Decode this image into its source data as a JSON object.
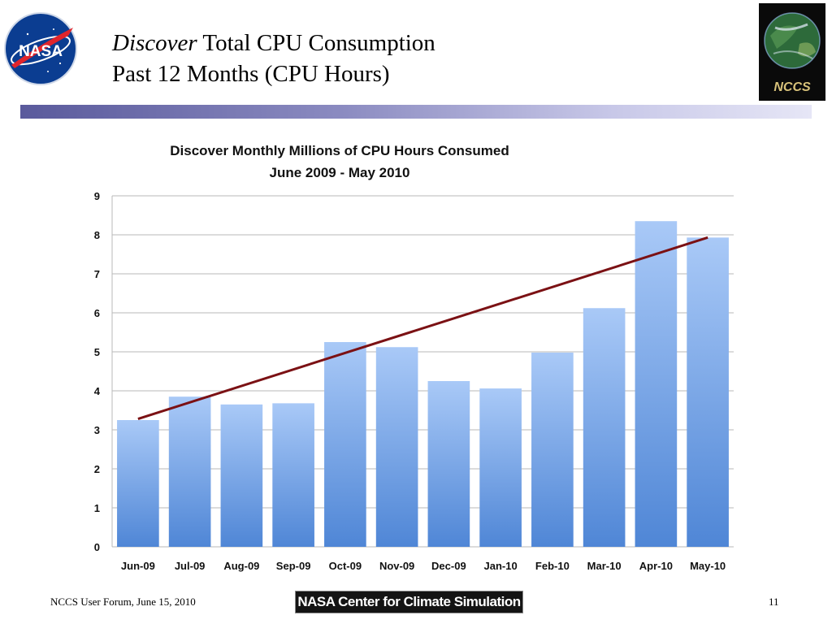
{
  "slide": {
    "title_italic": "Discover",
    "title_rest": " Total CPU Consumption",
    "title_line2": "Past 12 Months (CPU Hours)",
    "nasa_logo_text": "NASA",
    "nccs_logo_text": "NCCS",
    "footer_left": "NCCS User Forum, June 15, 2010",
    "footer_center": "NASA Center for Climate Simulation",
    "page_number": "11"
  },
  "colors": {
    "bar_top": "#a9c9f7",
    "bar_bottom": "#4f86d6",
    "trend_line": "#7b1114",
    "grid": "#b8b8b8",
    "title_bar_start": "#5a5a9c"
  },
  "chart_data": {
    "type": "bar",
    "title": "Discover Monthly Millions of CPU Hours Consumed",
    "subtitle": "June 2009 - May 2010",
    "categories": [
      "Jun-09",
      "Jul-09",
      "Aug-09",
      "Sep-09",
      "Oct-09",
      "Nov-09",
      "Dec-09",
      "Jan-10",
      "Feb-10",
      "Mar-10",
      "Apr-10",
      "May-10"
    ],
    "values": [
      3.25,
      3.85,
      3.65,
      3.68,
      5.25,
      5.12,
      4.25,
      4.06,
      4.98,
      6.12,
      8.35,
      7.93
    ],
    "ylim": [
      0,
      9
    ],
    "yticks": [
      0,
      1,
      2,
      3,
      4,
      5,
      6,
      7,
      8,
      9
    ],
    "grid": true,
    "trendline": {
      "type": "linear",
      "start": 3.28,
      "end": 7.93
    }
  }
}
